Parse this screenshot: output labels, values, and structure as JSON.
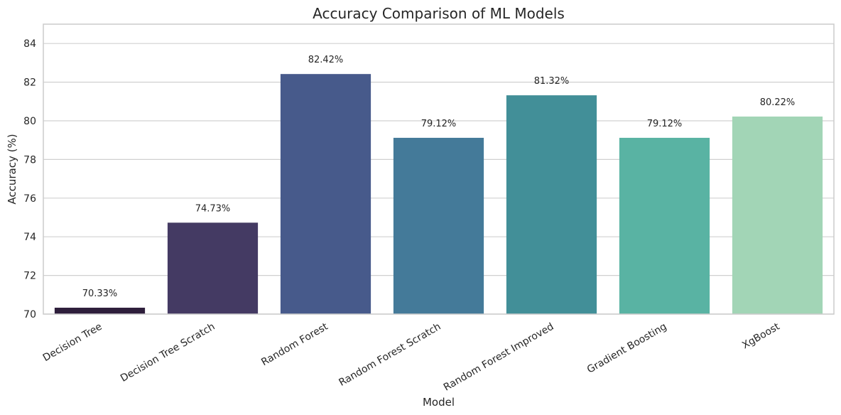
{
  "chart_data": {
    "type": "bar",
    "title": "Accuracy Comparison of ML Models",
    "xlabel": "Model",
    "ylabel": "Accuracy (%)",
    "categories": [
      "Decision Tree",
      "Decision Tree Scratch",
      "Random Forest",
      "Random Forest Scratch",
      "Random Forest Improved",
      "Gradient Boosting",
      "XgBoost"
    ],
    "values": [
      70.33,
      74.73,
      82.42,
      79.12,
      81.32,
      79.12,
      80.22
    ],
    "data_labels": [
      "70.33%",
      "74.73%",
      "82.42%",
      "79.12%",
      "81.32%",
      "79.12%",
      "80.22%"
    ],
    "ylim": [
      70,
      85
    ],
    "yticks": [
      70,
      72,
      74,
      76,
      78,
      80,
      82,
      84
    ],
    "grid": "horizontal",
    "colors": [
      "#2e1e3b",
      "#443a63",
      "#475a8b",
      "#447a99",
      "#428f98",
      "#59b3a3",
      "#a2d5b6"
    ]
  }
}
